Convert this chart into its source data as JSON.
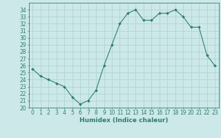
{
  "x": [
    0,
    1,
    2,
    3,
    4,
    5,
    6,
    7,
    8,
    9,
    10,
    11,
    12,
    13,
    14,
    15,
    16,
    17,
    18,
    19,
    20,
    21,
    22,
    23
  ],
  "y": [
    25.5,
    24.5,
    24.0,
    23.5,
    23.0,
    21.5,
    20.5,
    21.0,
    22.5,
    26.0,
    29.0,
    32.0,
    33.5,
    34.0,
    32.5,
    32.5,
    33.5,
    33.5,
    34.0,
    33.0,
    31.5,
    31.5,
    27.5,
    26.0
  ],
  "line_color": "#2e7d6e",
  "marker": "D",
  "marker_size": 2.0,
  "bg_color": "#cce8e8",
  "grid_color": "#aad0d0",
  "tick_color": "#2e7d6e",
  "xlabel": "Humidex (Indice chaleur)",
  "ylim": [
    20,
    35
  ],
  "xlim": [
    -0.5,
    23.5
  ],
  "yticks": [
    20,
    21,
    22,
    23,
    24,
    25,
    26,
    27,
    28,
    29,
    30,
    31,
    32,
    33,
    34
  ],
  "xticks": [
    0,
    1,
    2,
    3,
    4,
    5,
    6,
    7,
    8,
    9,
    10,
    11,
    12,
    13,
    14,
    15,
    16,
    17,
    18,
    19,
    20,
    21,
    22,
    23
  ],
  "xlabel_fontsize": 6.5,
  "tick_fontsize": 5.5,
  "linewidth": 0.8
}
